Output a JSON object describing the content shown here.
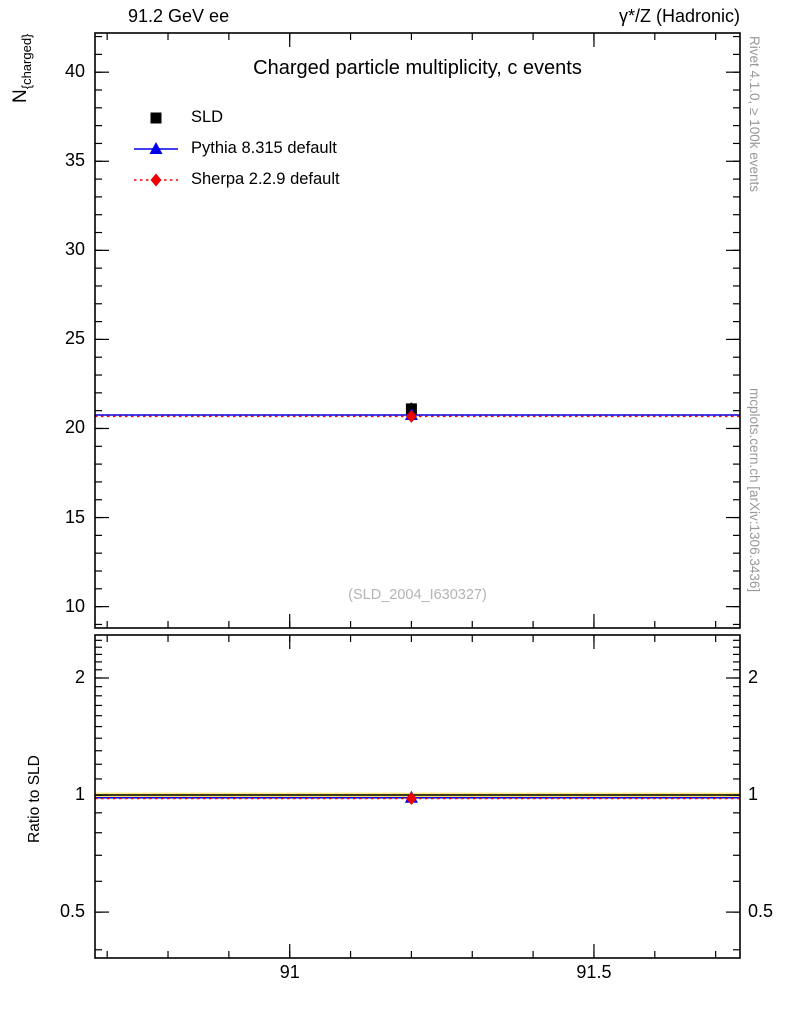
{
  "header": {
    "left": "91.2 GeV ee",
    "right": "γ*/Z (Hadronic)"
  },
  "titles": {
    "watermark": "(SLD_2004_I630327)",
    "right_top": "Rivet 4.1.0, ≥ 100k events",
    "right_bottom": "mcplots.cern.ch [arXiv:1306.3436]",
    "y_axis_main": "N",
    "y_axis_main_sub": "{charged}",
    "y_axis_ratio": "Ratio to SLD"
  },
  "legend": [
    {
      "label": "SLD",
      "marker": "square",
      "color": "#000000",
      "line": "none"
    },
    {
      "label": "Pythia 8.315 default",
      "marker": "triangle",
      "color": "#0000ee",
      "line": "solid"
    },
    {
      "label": "Sherpa 2.2.9 default",
      "marker": "diamond",
      "color": "#ee0000",
      "line": "dotted"
    }
  ],
  "chart_data": {
    "type": "line",
    "title": "Charged particle multiplicity, c events",
    "xlabel": "",
    "xlim": [
      90.68,
      91.74
    ],
    "x_major_ticks": [
      91,
      91.5
    ],
    "x_major_labels": [
      "91",
      "91.5"
    ],
    "x_minor_ticks": [
      90.7,
      90.8,
      90.9,
      91.0,
      91.1,
      91.2,
      91.3,
      91.4,
      91.5,
      91.6,
      91.7
    ],
    "panels": [
      {
        "name": "main",
        "ylabel": "N_{charged}",
        "yscale": "linear",
        "ylim": [
          8.8,
          42.2
        ],
        "y_major_ticks": [
          10,
          15,
          20,
          25,
          30,
          35,
          40
        ],
        "y_minor_step": 1,
        "series": [
          {
            "name": "SLD",
            "type": "point",
            "x": 91.2,
            "y": 21.1,
            "yerr": 0.35,
            "marker": "square",
            "color": "#000000"
          },
          {
            "name": "Pythia 8.315 default",
            "type": "hline+point",
            "x": 91.2,
            "y": 20.76,
            "marker": "triangle",
            "color": "#0000ee",
            "linestyle": "solid"
          },
          {
            "name": "Sherpa 2.2.9 default",
            "type": "hline+point",
            "x": 91.2,
            "y": 20.68,
            "marker": "diamond",
            "color": "#ee0000",
            "linestyle": "dotted"
          }
        ]
      },
      {
        "name": "ratio",
        "ylabel": "Ratio to SLD",
        "yscale": "log",
        "ylim": [
          0.381,
          2.58
        ],
        "y_major_ticks": [
          0.5,
          1,
          2
        ],
        "y_major_labels": [
          "0.5",
          "1",
          "2"
        ],
        "series": [
          {
            "name": "SLD reference",
            "type": "hline",
            "y": 1.0,
            "band": [
              0.986,
              1.014
            ],
            "band_color": "#ffe97a",
            "color": "#000000",
            "linestyle": "solid"
          },
          {
            "name": "Pythia 8.315 default",
            "type": "hline+point",
            "x": 91.2,
            "y": 0.984,
            "marker": "triangle",
            "color": "#0000ee",
            "linestyle": "solid"
          },
          {
            "name": "Sherpa 2.2.9 default",
            "type": "hline+point",
            "x": 91.2,
            "y": 0.98,
            "marker": "diamond",
            "color": "#ee0000",
            "linestyle": "dotted"
          }
        ]
      }
    ]
  }
}
